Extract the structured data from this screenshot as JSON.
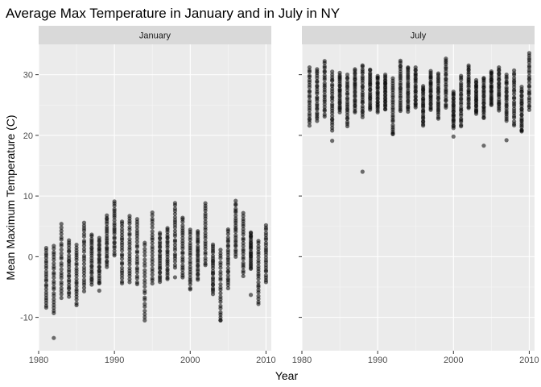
{
  "chart_data": {
    "type": "scatter",
    "title": "Average Max Temperature in January and in July in NY",
    "xlabel": "Year",
    "ylabel": "Mean Maximum Temperature (C)",
    "xlim": [
      1980.0,
      2010.7
    ],
    "ylim": [
      -15.5,
      35.0
    ],
    "xticks": [
      1980,
      1990,
      2000,
      2010
    ],
    "yticks": [
      -10,
      0,
      10,
      20,
      30
    ],
    "grid": true,
    "point_color": "#000000",
    "point_opacity": 0.55,
    "panel_background": "#ebebeb",
    "strip_background": "#d9d9d9",
    "panels": [
      {
        "label": "January",
        "columns": [
          {
            "x": 1981,
            "min": -8.4,
            "max": 1.5
          },
          {
            "x": 1982,
            "min": -9.3,
            "max": 1.8
          },
          {
            "x": 1983,
            "min": -6.8,
            "max": 5.4
          },
          {
            "x": 1984,
            "min": -6.6,
            "max": 2.7
          },
          {
            "x": 1985,
            "min": -8.0,
            "max": 2.0
          },
          {
            "x": 1986,
            "min": -5.7,
            "max": 5.7
          },
          {
            "x": 1987,
            "min": -4.6,
            "max": 3.7
          },
          {
            "x": 1988,
            "min": -4.5,
            "max": 3.1
          },
          {
            "x": 1989,
            "min": -1.7,
            "max": 6.8
          },
          {
            "x": 1990,
            "min": 0.2,
            "max": 9.1
          },
          {
            "x": 1991,
            "min": -4.5,
            "max": 5.9
          },
          {
            "x": 1992,
            "min": -4.2,
            "max": 6.8
          },
          {
            "x": 1993,
            "min": -4.6,
            "max": 6.2
          },
          {
            "x": 1994,
            "min": -10.6,
            "max": 2.4
          },
          {
            "x": 1995,
            "min": -4.5,
            "max": 7.3
          },
          {
            "x": 1996,
            "min": -4.2,
            "max": 3.9
          },
          {
            "x": 1997,
            "min": -3.8,
            "max": 4.8
          },
          {
            "x": 1998,
            "min": -1.8,
            "max": 8.9
          },
          {
            "x": 1999,
            "min": -3.5,
            "max": 6.5
          },
          {
            "x": 2000,
            "min": -5.5,
            "max": 4.5
          },
          {
            "x": 2001,
            "min": -3.8,
            "max": 4.3
          },
          {
            "x": 2002,
            "min": -1.5,
            "max": 8.9
          },
          {
            "x": 2003,
            "min": -6.2,
            "max": 2.0
          },
          {
            "x": 2004,
            "min": -10.6,
            "max": 1.2
          },
          {
            "x": 2005,
            "min": -5.2,
            "max": 4.5
          },
          {
            "x": 2006,
            "min": 0.0,
            "max": 9.2
          },
          {
            "x": 2007,
            "min": -3.2,
            "max": 7.2
          },
          {
            "x": 2008,
            "min": -2.0,
            "max": 4.1
          },
          {
            "x": 2009,
            "min": -7.8,
            "max": 2.6
          },
          {
            "x": 2010,
            "min": -4.2,
            "max": 5.2
          }
        ],
        "outliers": [
          {
            "x": 1982,
            "y": -13.4
          },
          {
            "x": 1988,
            "y": -5.6
          },
          {
            "x": 1998,
            "y": -3.4
          },
          {
            "x": 2004,
            "y": -10.5
          },
          {
            "x": 2008,
            "y": -6.3
          }
        ]
      },
      {
        "label": "July",
        "columns": [
          {
            "x": 1981,
            "min": 21.6,
            "max": 31.2
          },
          {
            "x": 1982,
            "min": 22.3,
            "max": 30.9
          },
          {
            "x": 1983,
            "min": 23.1,
            "max": 32.3
          },
          {
            "x": 1984,
            "min": 21.2,
            "max": 30.5
          },
          {
            "x": 1985,
            "min": 23.8,
            "max": 30.3
          },
          {
            "x": 1986,
            "min": 21.5,
            "max": 30.0
          },
          {
            "x": 1987,
            "min": 23.8,
            "max": 31.0
          },
          {
            "x": 1988,
            "min": 23.0,
            "max": 31.6
          },
          {
            "x": 1989,
            "min": 24.2,
            "max": 30.9
          },
          {
            "x": 1990,
            "min": 23.8,
            "max": 29.9
          },
          {
            "x": 1991,
            "min": 24.2,
            "max": 30.0
          },
          {
            "x": 1992,
            "min": 20.2,
            "max": 29.4
          },
          {
            "x": 1993,
            "min": 24.0,
            "max": 32.3
          },
          {
            "x": 1994,
            "min": 23.9,
            "max": 31.3
          },
          {
            "x": 1995,
            "min": 24.5,
            "max": 31.2
          },
          {
            "x": 1996,
            "min": 21.6,
            "max": 28.2
          },
          {
            "x": 1997,
            "min": 24.2,
            "max": 30.6
          },
          {
            "x": 1998,
            "min": 22.7,
            "max": 30.2
          },
          {
            "x": 1999,
            "min": 24.5,
            "max": 32.7
          },
          {
            "x": 2000,
            "min": 21.2,
            "max": 27.2
          },
          {
            "x": 2001,
            "min": 21.4,
            "max": 29.8
          },
          {
            "x": 2002,
            "min": 24.5,
            "max": 31.6
          },
          {
            "x": 2003,
            "min": 23.5,
            "max": 29.1
          },
          {
            "x": 2004,
            "min": 22.8,
            "max": 29.5
          },
          {
            "x": 2005,
            "min": 25.0,
            "max": 30.6
          },
          {
            "x": 2006,
            "min": 24.1,
            "max": 31.2
          },
          {
            "x": 2007,
            "min": 22.4,
            "max": 30.0
          },
          {
            "x": 2008,
            "min": 21.6,
            "max": 30.7
          },
          {
            "x": 2009,
            "min": 20.6,
            "max": 28.0
          },
          {
            "x": 2010,
            "min": 24.2,
            "max": 33.6
          }
        ],
        "outliers": [
          {
            "x": 1984,
            "y": 19.1
          },
          {
            "x": 1984,
            "y": 20.8
          },
          {
            "x": 1988,
            "y": 14.0
          },
          {
            "x": 1992,
            "y": 20.2
          },
          {
            "x": 2000,
            "y": 19.8
          },
          {
            "x": 2004,
            "y": 18.3
          },
          {
            "x": 2007,
            "y": 19.2
          },
          {
            "x": 2009,
            "y": 20.8
          }
        ]
      }
    ]
  }
}
